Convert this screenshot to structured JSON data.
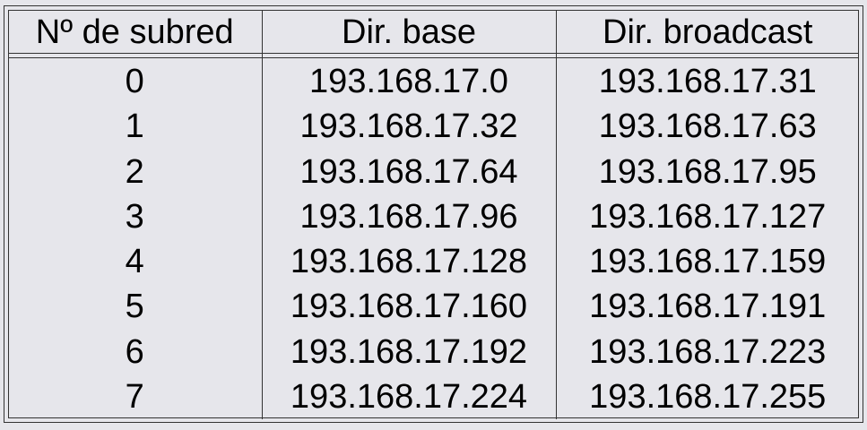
{
  "table": {
    "headers": [
      "Nº de subred",
      "Dir. base",
      "Dir. broadcast"
    ],
    "rows": [
      [
        "0",
        "193.168.17.0",
        "193.168.17.31"
      ],
      [
        "1",
        "193.168.17.32",
        "193.168.17.63"
      ],
      [
        "2",
        "193.168.17.64",
        "193.168.17.95"
      ],
      [
        "3",
        "193.168.17.96",
        "193.168.17.127"
      ],
      [
        "4",
        "193.168.17.128",
        "193.168.17.159"
      ],
      [
        "5",
        "193.168.17.160",
        "193.168.17.191"
      ],
      [
        "6",
        "193.168.17.192",
        "193.168.17.223"
      ],
      [
        "7",
        "193.168.17.224",
        "193.168.17.255"
      ]
    ]
  },
  "colors": {
    "background": "#e6e6eb",
    "rule": "#333333",
    "text": "#000000"
  }
}
